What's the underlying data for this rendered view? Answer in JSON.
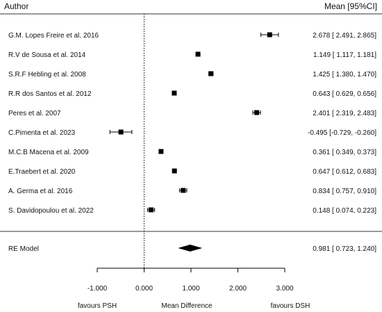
{
  "chart_data": {
    "type": "forest",
    "header": {
      "author_label": "Author",
      "estimate_label": "Mean [95%CI]"
    },
    "studies": [
      {
        "author": "G.M. Lopes Freire et al. 2016",
        "mean": 2.678,
        "lower": 2.491,
        "upper": 2.865,
        "ci_text": "2.678 [ 2.491,  2.865]"
      },
      {
        "author": "R.V de Sousa et al. 2014",
        "mean": 1.149,
        "lower": 1.117,
        "upper": 1.181,
        "ci_text": "1.149 [ 1.117,  1.181]"
      },
      {
        "author": "S.R.F Hebling et al. 2008",
        "mean": 1.425,
        "lower": 1.38,
        "upper": 1.47,
        "ci_text": "1.425 [ 1.380,  1.470]"
      },
      {
        "author": "R.R dos Santos et al. 2012",
        "mean": 0.643,
        "lower": 0.629,
        "upper": 0.656,
        "ci_text": "0.643 [ 0.629,  0.656]"
      },
      {
        "author": "Peres et al. 2007",
        "mean": 2.401,
        "lower": 2.319,
        "upper": 2.483,
        "ci_text": "2.401 [ 2.319,  2.483]"
      },
      {
        "author": "C.Pimenta et al. 2023",
        "mean": -0.495,
        "lower": -0.729,
        "upper": -0.26,
        "ci_text": "-0.495 [-0.729, -0.260]"
      },
      {
        "author": "M.C.B Macena et al. 2009",
        "mean": 0.361,
        "lower": 0.349,
        "upper": 0.373,
        "ci_text": "0.361 [ 0.349,  0.373]"
      },
      {
        "author": "E.Traebert et al. 2020",
        "mean": 0.647,
        "lower": 0.612,
        "upper": 0.683,
        "ci_text": "0.647 [ 0.612,  0.683]"
      },
      {
        "author": "A. Germa et al. 2016",
        "mean": 0.834,
        "lower": 0.757,
        "upper": 0.91,
        "ci_text": "0.834 [ 0.757,  0.910]"
      },
      {
        "author": "S. Davidopoulou et al. 2022",
        "mean": 0.148,
        "lower": 0.074,
        "upper": 0.223,
        "ci_text": "0.148 [ 0.074,  0.223]"
      }
    ],
    "summary": {
      "label": "RE Model",
      "mean": 0.981,
      "lower": 0.723,
      "upper": 1.24,
      "ci_text": "0.981 [ 0.723,  1.240]"
    },
    "x_axis": {
      "range": [
        -1.0,
        3.0
      ],
      "ticks": [
        -1.0,
        0.0,
        1.0,
        2.0,
        3.0
      ],
      "tick_labels": [
        "-1.000",
        "0.000",
        "1.000",
        "2.000",
        "3.000"
      ],
      "label": "Mean Difference",
      "left_note": "favours PSH",
      "right_note": "favours DSH"
    },
    "reference_line": 0
  }
}
